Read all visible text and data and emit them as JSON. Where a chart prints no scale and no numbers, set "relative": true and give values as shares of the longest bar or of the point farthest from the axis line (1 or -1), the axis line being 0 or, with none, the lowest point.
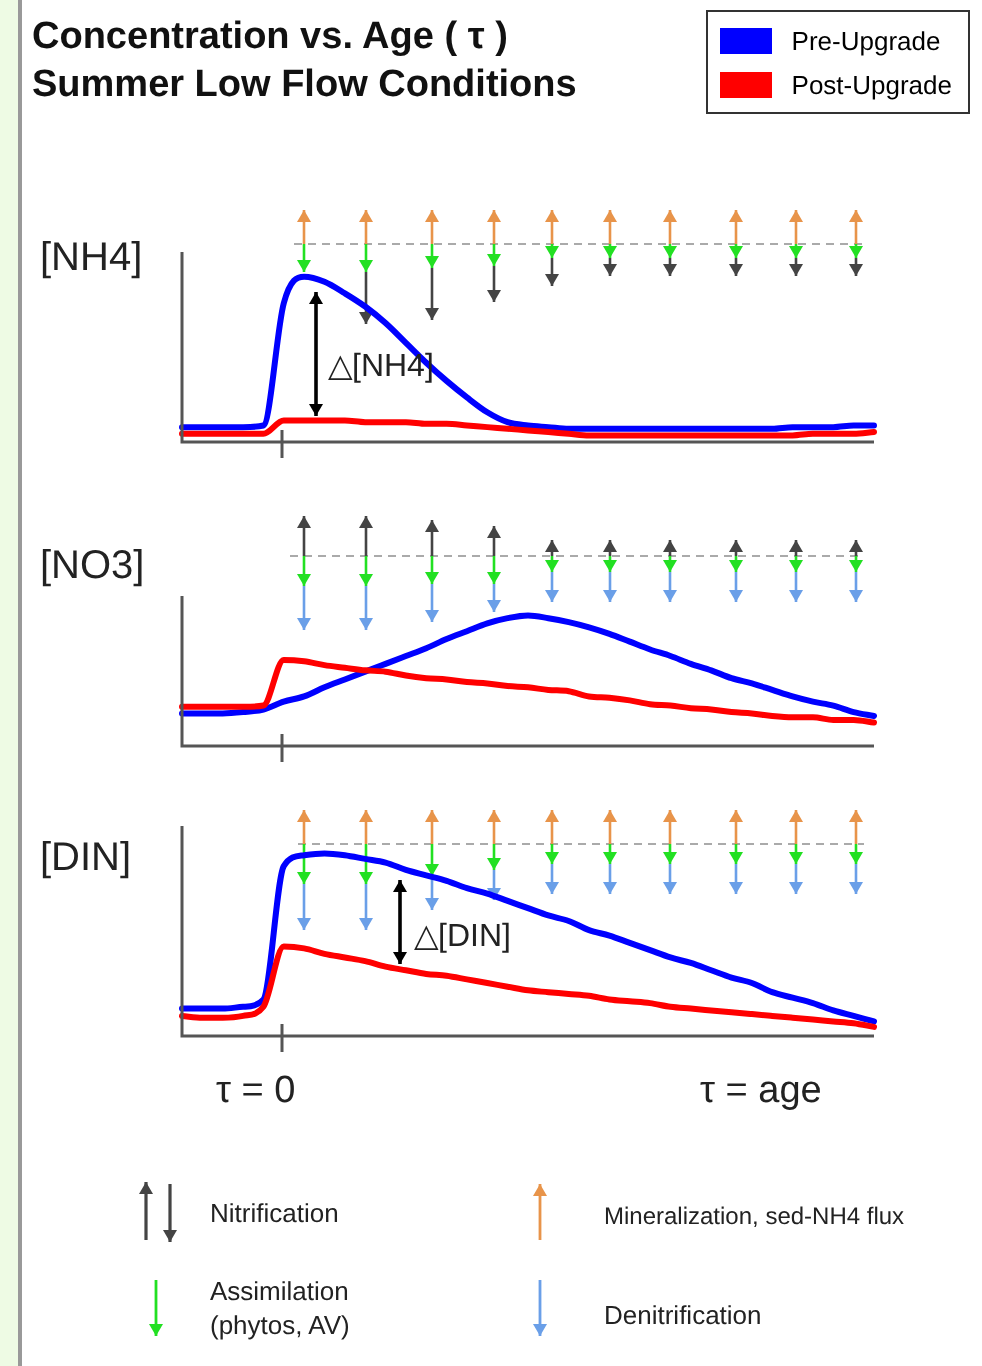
{
  "chart_data": [
    {
      "type": "line",
      "title": "Concentration vs. Age ( τ )",
      "subtitle": "Summer Low Flow Conditions",
      "ylabel": "[NH4]",
      "relative": true,
      "legend": "top right",
      "annotations": [
        "△[NH4]"
      ],
      "categories": [
        null,
        null,
        null,
        null,
        null,
        null,
        null,
        null,
        null,
        null,
        null,
        null,
        null,
        null,
        null,
        null,
        null,
        null,
        null,
        null,
        null,
        null,
        null,
        null,
        null,
        null,
        null,
        null,
        null,
        null,
        null,
        null,
        null,
        null,
        null
      ],
      "series": [
        {
          "name": "Pre-Upgrade",
          "color": "#0000ff",
          "values": [
            0.09,
            0.09,
            0.09,
            0.09,
            0.1,
            0.84,
            1,
            0.97,
            0.9,
            0.82,
            0.72,
            0.6,
            0.48,
            0.37,
            0.27,
            0.18,
            0.12,
            0.1,
            0.09,
            0.08,
            0.08,
            0.08,
            0.08,
            0.08,
            0.08,
            0.08,
            0.08,
            0.08,
            0.08,
            0.08,
            0.09,
            0.09,
            0.09,
            0.1,
            0.1
          ]
        },
        {
          "name": "Post-Upgrade",
          "color": "#ff0000",
          "values": [
            0.05,
            0.05,
            0.05,
            0.05,
            0.05,
            0.13,
            0.13,
            0.13,
            0.13,
            0.12,
            0.12,
            0.12,
            0.11,
            0.11,
            0.1,
            0.09,
            0.08,
            0.07,
            0.06,
            0.05,
            0.04,
            0.04,
            0.04,
            0.04,
            0.04,
            0.04,
            0.04,
            0.04,
            0.04,
            0.04,
            0.04,
            0.05,
            0.05,
            0.05,
            0.06
          ]
        }
      ]
    },
    {
      "type": "line",
      "ylabel": "[NO3]",
      "relative": true,
      "categories": [
        null,
        null,
        null,
        null,
        null,
        null,
        null,
        null,
        null,
        null,
        null,
        null,
        null,
        null,
        null,
        null,
        null,
        null,
        null,
        null,
        null,
        null,
        null,
        null,
        null,
        null,
        null,
        null,
        null,
        null,
        null,
        null,
        null,
        null,
        null
      ],
      "series": [
        {
          "color": "#0000ff",
          "values": [
            0.25,
            0.25,
            0.25,
            0.26,
            0.28,
            0.34,
            0.38,
            0.45,
            0.51,
            0.57,
            0.63,
            0.69,
            0.75,
            0.82,
            0.88,
            0.94,
            0.98,
            1,
            0.98,
            0.95,
            0.91,
            0.86,
            0.8,
            0.74,
            0.69,
            0.63,
            0.58,
            0.52,
            0.48,
            0.43,
            0.38,
            0.34,
            0.31,
            0.26,
            0.23
          ]
        },
        {
          "color": "#ff0000",
          "values": [
            0.3,
            0.3,
            0.3,
            0.3,
            0.31,
            0.66,
            0.65,
            0.62,
            0.6,
            0.58,
            0.57,
            0.54,
            0.52,
            0.51,
            0.49,
            0.48,
            0.46,
            0.45,
            0.43,
            0.42,
            0.38,
            0.37,
            0.35,
            0.32,
            0.31,
            0.29,
            0.28,
            0.26,
            0.25,
            0.23,
            0.22,
            0.22,
            0.2,
            0.2,
            0.18
          ]
        }
      ]
    },
    {
      "type": "line",
      "ylabel": "[DIN]",
      "relative": true,
      "annotations": [
        "△[DIN]",
        "τ = 0",
        "τ = age",
        "Nitrification",
        "Mineralization, sed-NH4 flux",
        "Assimilation (phytos, AV)",
        "Denitrification"
      ],
      "categories": [
        null,
        null,
        null,
        null,
        null,
        null,
        null,
        null,
        null,
        null,
        null,
        null,
        null,
        null,
        null,
        null,
        null,
        null,
        null,
        null,
        null,
        null,
        null,
        null,
        null,
        null,
        null,
        null,
        null,
        null,
        null,
        null,
        null,
        null,
        null
      ],
      "series": [
        {
          "color": "#0000ff",
          "values": [
            0.15,
            0.15,
            0.15,
            0.16,
            0.2,
            0.93,
            0.99,
            1,
            0.99,
            0.97,
            0.95,
            0.91,
            0.88,
            0.85,
            0.81,
            0.78,
            0.74,
            0.7,
            0.66,
            0.63,
            0.58,
            0.55,
            0.51,
            0.47,
            0.43,
            0.4,
            0.36,
            0.32,
            0.29,
            0.24,
            0.21,
            0.18,
            0.14,
            0.11,
            0.08
          ]
        },
        {
          "color": "#ff0000",
          "values": [
            0.11,
            0.1,
            0.1,
            0.11,
            0.16,
            0.49,
            0.48,
            0.45,
            0.43,
            0.41,
            0.38,
            0.36,
            0.34,
            0.33,
            0.31,
            0.29,
            0.27,
            0.25,
            0.24,
            0.23,
            0.22,
            0.2,
            0.19,
            0.18,
            0.16,
            0.15,
            0.14,
            0.13,
            0.12,
            0.11,
            0.1,
            0.09,
            0.08,
            0.07,
            0.05
          ]
        }
      ]
    }
  ]
}
